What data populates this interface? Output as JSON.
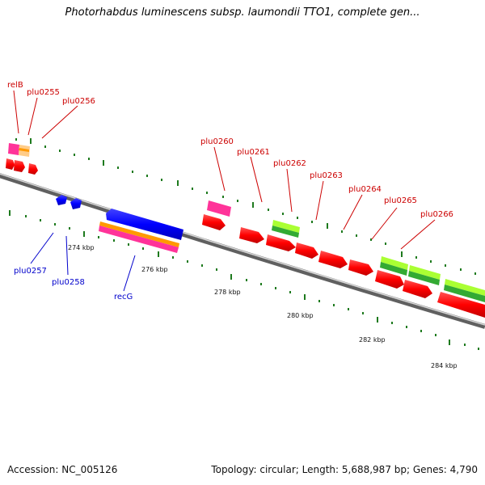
{
  "title": "Photorhabdus luminescens subsp. laumondii TTO1, complete gen...",
  "footer": {
    "accession": "Accession: NC_005126",
    "summary": "Topology: circular; Length: 5,688,987 bp; Genes: 4,790"
  },
  "colors": {
    "backbone": "#8a8a8a",
    "tick": "#1e7a1e",
    "gene_red": "#ff0000",
    "gene_blue": "#0000ff",
    "gene_pink": "#ff3399",
    "gene_green": "#33aa33",
    "gene_lime": "#aaff33",
    "gene_orange": "#ff9900",
    "gene_tan": "#ffcc88",
    "label_red": "#cc0000",
    "label_blue": "#0000cc"
  },
  "axis_labels": [
    "274 kbp",
    "276 kbp",
    "278 kbp",
    "280 kbp",
    "282 kbp",
    "284 kbp"
  ],
  "gene_labels": {
    "relB": "relB",
    "plu0255": "plu0255",
    "plu0256": "plu0256",
    "plu0257": "plu0257",
    "plu0258": "plu0258",
    "recG": "recG",
    "plu0260": "plu0260",
    "plu0261": "plu0261",
    "plu0262": "plu0262",
    "plu0263": "plu0263",
    "plu0264": "plu0264",
    "plu0265": "plu0265",
    "plu0266": "plu0266"
  }
}
